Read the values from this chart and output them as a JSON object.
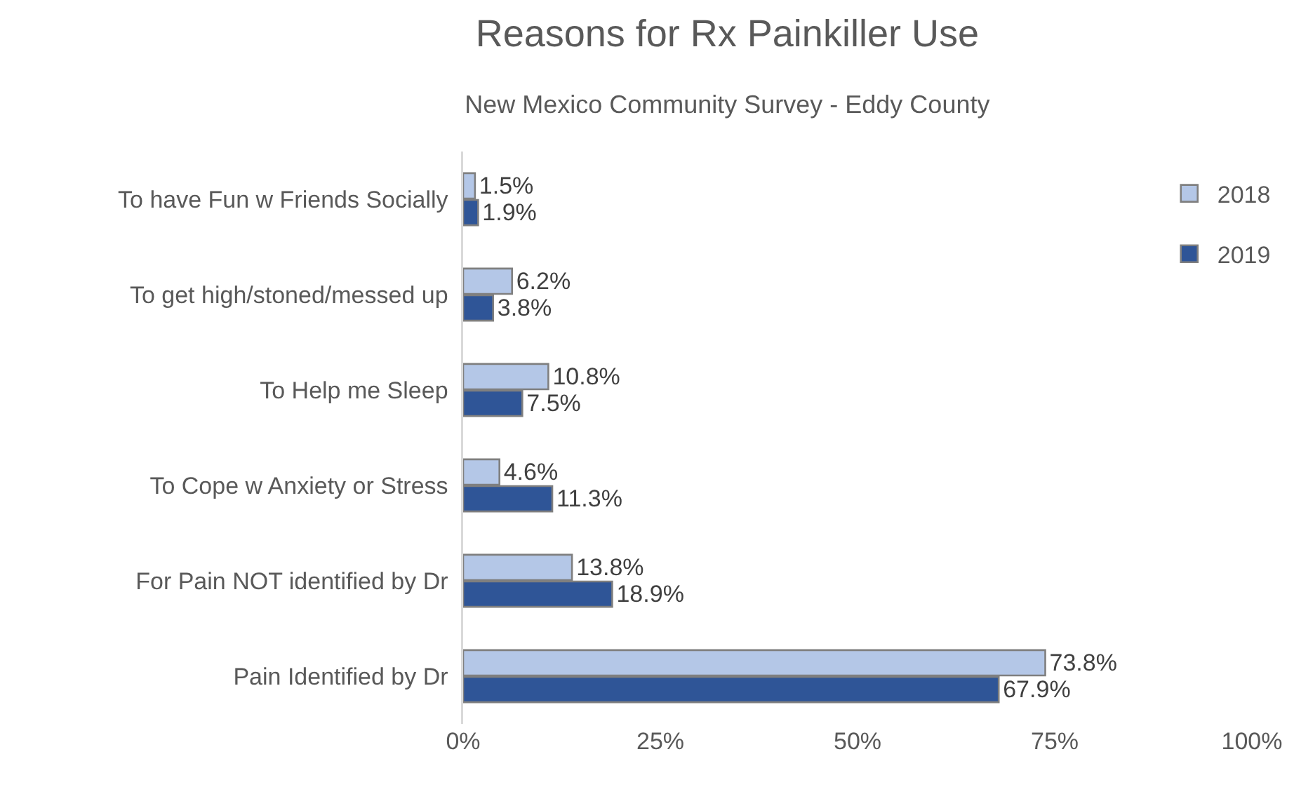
{
  "chart_data": {
    "type": "bar",
    "orientation": "horizontal",
    "title": "Reasons for Rx Painkiller Use",
    "subtitle": "New Mexico Community Survey - Eddy County",
    "categories": [
      "To have Fun w Friends Socially",
      "To get high/stoned/messed up",
      "To Help me Sleep",
      "To Cope w Anxiety or Stress",
      "For Pain NOT identified by Dr",
      "Pain Identified by Dr"
    ],
    "series": [
      {
        "name": "2018",
        "color": "#b4c7e7",
        "values": [
          1.5,
          6.2,
          10.8,
          4.6,
          13.8,
          73.8
        ],
        "value_labels": [
          "1.5%",
          "6.2%",
          "10.8%",
          "4.6%",
          "13.8%",
          "73.8%"
        ]
      },
      {
        "name": "2019",
        "color": "#2f5597",
        "values": [
          1.9,
          3.8,
          7.5,
          11.3,
          18.9,
          67.9
        ],
        "value_labels": [
          "1.9%",
          "3.8%",
          "7.5%",
          "11.3%",
          "18.9%",
          "67.9%"
        ]
      }
    ],
    "xlim": [
      0,
      100
    ],
    "xticks": [
      {
        "value": 0,
        "label": "0%"
      },
      {
        "value": 25,
        "label": "25%"
      },
      {
        "value": 50,
        "label": "50%"
      },
      {
        "value": 75,
        "label": "75%"
      },
      {
        "value": 100,
        "label": "100%"
      }
    ],
    "grid": false,
    "legend": "top right"
  }
}
